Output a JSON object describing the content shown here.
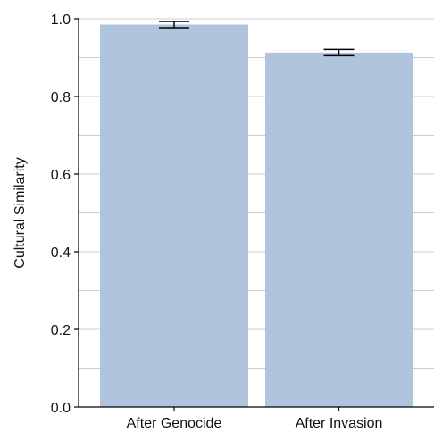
{
  "chart_data": {
    "type": "bar",
    "categories": [
      "After Genocide",
      "After Invasion"
    ],
    "values": [
      0.985,
      0.913
    ],
    "error_bars": [
      0.008,
      0.008
    ],
    "ylabel": "Cultural Similarity",
    "xlabel": "",
    "ylim": [
      0,
      1.0
    ],
    "yticks": [
      0.0,
      0.2,
      0.4,
      0.6,
      0.8,
      1.0
    ],
    "ytick_labels": [
      "0.0",
      "0.2",
      "0.4",
      "0.6",
      "0.8",
      "1.0"
    ],
    "grid": true,
    "grid_axis": "y",
    "colors": {
      "bar": "#b0c4de",
      "grid": "#cccccc",
      "axis": "#000000",
      "error_bar": "#000000"
    }
  }
}
